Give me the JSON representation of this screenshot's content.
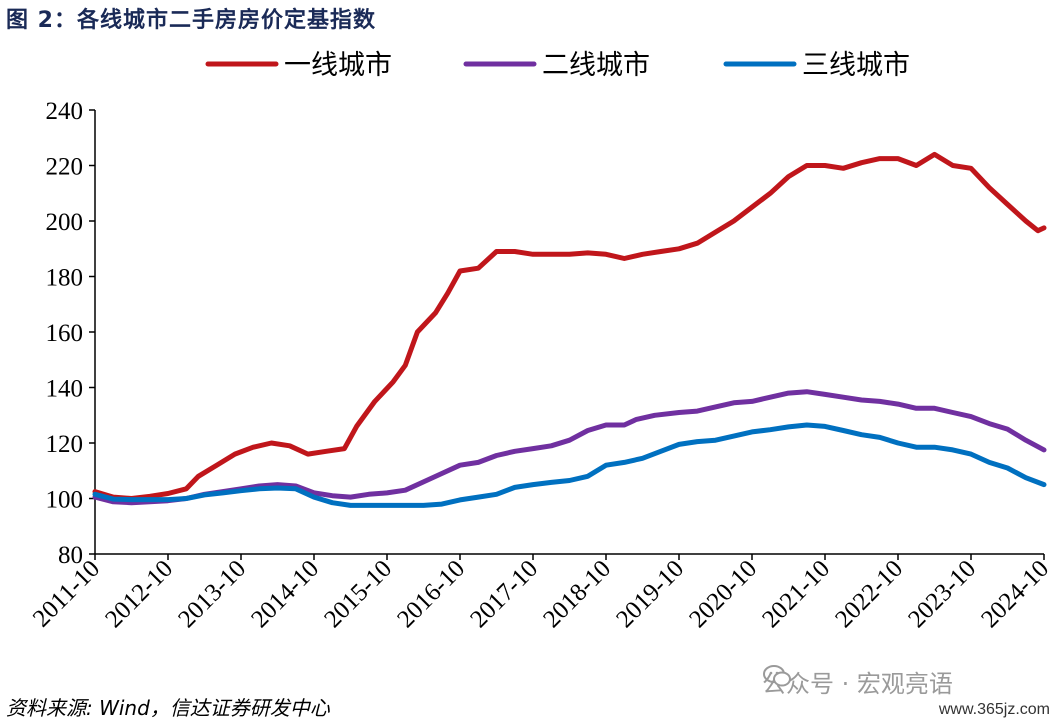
{
  "title": "图  2：各线城市二手房房价定基指数",
  "source": "资料来源: Wind，信达证券研发中心",
  "watermark": "公众号 · 宏观亮语",
  "site": "www.365jz.com",
  "colors": {
    "tier1": "#c0161b",
    "tier2": "#7030a0",
    "tier3": "#0070c0"
  },
  "chart_data": {
    "type": "line",
    "ylim": [
      80,
      240
    ],
    "yticks": [
      80,
      100,
      120,
      140,
      160,
      180,
      200,
      220,
      240
    ],
    "x_start": "2011-10",
    "x_end": "2024-10",
    "x_ticks": [
      "2011-10",
      "2012-10",
      "2013-10",
      "2014-10",
      "2015-10",
      "2016-10",
      "2017-10",
      "2018-10",
      "2019-10",
      "2020-10",
      "2021-10",
      "2022-10",
      "2023-10",
      "2024-10"
    ],
    "legend_position": "top",
    "series": [
      {
        "name": "一线城市",
        "color_key": "tier1",
        "points": [
          [
            "2011-10",
            102.5
          ],
          [
            "2012-01",
            100.5
          ],
          [
            "2012-04",
            100.0
          ],
          [
            "2012-07",
            100.8
          ],
          [
            "2012-10",
            101.8
          ],
          [
            "2013-01",
            103.5
          ],
          [
            "2013-03",
            108
          ],
          [
            "2013-06",
            112
          ],
          [
            "2013-09",
            116
          ],
          [
            "2013-12",
            118.5
          ],
          [
            "2014-03",
            120
          ],
          [
            "2014-06",
            119
          ],
          [
            "2014-09",
            116
          ],
          [
            "2014-12",
            117
          ],
          [
            "2015-03",
            118
          ],
          [
            "2015-05",
            126
          ],
          [
            "2015-08",
            135
          ],
          [
            "2015-11",
            142
          ],
          [
            "2016-01",
            148
          ],
          [
            "2016-03",
            160
          ],
          [
            "2016-06",
            167
          ],
          [
            "2016-08",
            174
          ],
          [
            "2016-10",
            182
          ],
          [
            "2017-01",
            183
          ],
          [
            "2017-04",
            189
          ],
          [
            "2017-07",
            189
          ],
          [
            "2017-10",
            188
          ],
          [
            "2018-01",
            188
          ],
          [
            "2018-04",
            188
          ],
          [
            "2018-07",
            188.5
          ],
          [
            "2018-10",
            188
          ],
          [
            "2019-01",
            186.5
          ],
          [
            "2019-04",
            188
          ],
          [
            "2019-07",
            189
          ],
          [
            "2019-10",
            190
          ],
          [
            "2020-01",
            192
          ],
          [
            "2020-04",
            196
          ],
          [
            "2020-07",
            200
          ],
          [
            "2020-10",
            205
          ],
          [
            "2021-01",
            210
          ],
          [
            "2021-04",
            216
          ],
          [
            "2021-07",
            220
          ],
          [
            "2021-10",
            220
          ],
          [
            "2022-01",
            219
          ],
          [
            "2022-04",
            221
          ],
          [
            "2022-07",
            222.5
          ],
          [
            "2022-10",
            222.5
          ],
          [
            "2023-01",
            220
          ],
          [
            "2023-04",
            224
          ],
          [
            "2023-07",
            220
          ],
          [
            "2023-10",
            219
          ],
          [
            "2024-01",
            212
          ],
          [
            "2024-04",
            206
          ],
          [
            "2024-07",
            200
          ],
          [
            "2024-09",
            196.5
          ],
          [
            "2024-10",
            197.5
          ]
        ]
      },
      {
        "name": "二线城市",
        "color_key": "tier2",
        "points": [
          [
            "2011-10",
            100.5
          ],
          [
            "2012-01",
            98.8
          ],
          [
            "2012-04",
            98.5
          ],
          [
            "2012-07",
            98.8
          ],
          [
            "2012-10",
            99.2
          ],
          [
            "2013-01",
            100
          ],
          [
            "2013-04",
            101.5
          ],
          [
            "2013-07",
            102.5
          ],
          [
            "2013-10",
            103.5
          ],
          [
            "2014-01",
            104.5
          ],
          [
            "2014-04",
            105
          ],
          [
            "2014-07",
            104.5
          ],
          [
            "2014-10",
            102
          ],
          [
            "2015-01",
            101
          ],
          [
            "2015-04",
            100.5
          ],
          [
            "2015-07",
            101.5
          ],
          [
            "2015-10",
            102
          ],
          [
            "2016-01",
            103
          ],
          [
            "2016-04",
            106
          ],
          [
            "2016-07",
            109
          ],
          [
            "2016-10",
            112
          ],
          [
            "2017-01",
            113
          ],
          [
            "2017-04",
            115.5
          ],
          [
            "2017-07",
            117
          ],
          [
            "2017-10",
            118
          ],
          [
            "2018-01",
            119
          ],
          [
            "2018-04",
            121
          ],
          [
            "2018-07",
            124.5
          ],
          [
            "2018-10",
            126.5
          ],
          [
            "2019-01",
            126.5
          ],
          [
            "2019-03",
            128.5
          ],
          [
            "2019-06",
            130
          ],
          [
            "2019-10",
            131
          ],
          [
            "2020-01",
            131.5
          ],
          [
            "2020-04",
            133
          ],
          [
            "2020-07",
            134.5
          ],
          [
            "2020-10",
            135
          ],
          [
            "2021-01",
            136.5
          ],
          [
            "2021-04",
            138
          ],
          [
            "2021-07",
            138.5
          ],
          [
            "2021-10",
            137.5
          ],
          [
            "2022-01",
            136.5
          ],
          [
            "2022-04",
            135.5
          ],
          [
            "2022-07",
            135
          ],
          [
            "2022-10",
            134
          ],
          [
            "2023-01",
            132.5
          ],
          [
            "2023-04",
            132.5
          ],
          [
            "2023-07",
            131
          ],
          [
            "2023-10",
            129.5
          ],
          [
            "2024-01",
            127
          ],
          [
            "2024-04",
            125
          ],
          [
            "2024-07",
            121
          ],
          [
            "2024-10",
            117.5
          ]
        ]
      },
      {
        "name": "三线城市",
        "color_key": "tier3",
        "points": [
          [
            "2011-10",
            101.5
          ],
          [
            "2012-01",
            99.8
          ],
          [
            "2012-04",
            99.6
          ],
          [
            "2012-07",
            99.6
          ],
          [
            "2012-10",
            99.6
          ],
          [
            "2013-01",
            100
          ],
          [
            "2013-04",
            101.3
          ],
          [
            "2013-07",
            102
          ],
          [
            "2013-10",
            102.8
          ],
          [
            "2014-01",
            103.5
          ],
          [
            "2014-04",
            103.8
          ],
          [
            "2014-07",
            103.5
          ],
          [
            "2014-10",
            100.5
          ],
          [
            "2015-01",
            98.5
          ],
          [
            "2015-04",
            97.5
          ],
          [
            "2015-07",
            97.5
          ],
          [
            "2015-10",
            97.5
          ],
          [
            "2016-01",
            97.5
          ],
          [
            "2016-04",
            97.5
          ],
          [
            "2016-07",
            98
          ],
          [
            "2016-10",
            99.5
          ],
          [
            "2017-01",
            100.5
          ],
          [
            "2017-04",
            101.5
          ],
          [
            "2017-07",
            104
          ],
          [
            "2017-10",
            105
          ],
          [
            "2018-01",
            105.8
          ],
          [
            "2018-04",
            106.5
          ],
          [
            "2018-07",
            108
          ],
          [
            "2018-10",
            112
          ],
          [
            "2019-01",
            113
          ],
          [
            "2019-04",
            114.5
          ],
          [
            "2019-07",
            117
          ],
          [
            "2019-10",
            119.5
          ],
          [
            "2020-01",
            120.5
          ],
          [
            "2020-04",
            121
          ],
          [
            "2020-07",
            122.5
          ],
          [
            "2020-10",
            124
          ],
          [
            "2021-01",
            124.8
          ],
          [
            "2021-04",
            125.8
          ],
          [
            "2021-07",
            126.5
          ],
          [
            "2021-10",
            126
          ],
          [
            "2022-01",
            124.5
          ],
          [
            "2022-04",
            123
          ],
          [
            "2022-07",
            122
          ],
          [
            "2022-10",
            120
          ],
          [
            "2023-01",
            118.5
          ],
          [
            "2023-04",
            118.5
          ],
          [
            "2023-07",
            117.5
          ],
          [
            "2023-10",
            116
          ],
          [
            "2024-01",
            113
          ],
          [
            "2024-04",
            111
          ],
          [
            "2024-07",
            107.5
          ],
          [
            "2024-10",
            105
          ]
        ]
      }
    ]
  }
}
